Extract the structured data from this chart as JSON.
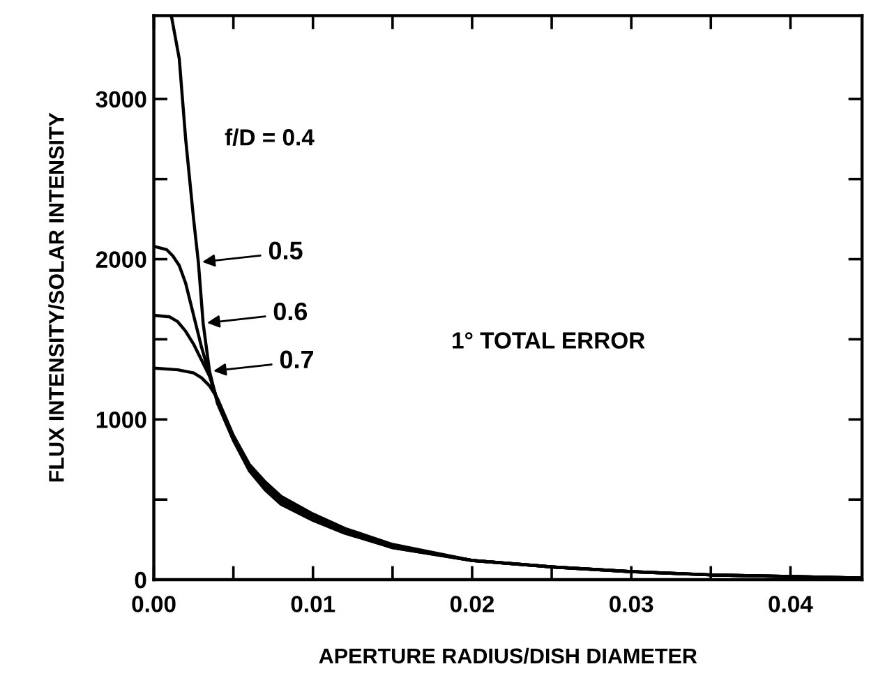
{
  "chart_data": {
    "type": "line",
    "xlabel": "APERTURE RADIUS/DISH DIAMETER",
    "ylabel": "FLUX INTENSITY/SOLAR INTENSITY",
    "xlim": [
      0,
      0.0445
    ],
    "ylim": [
      0,
      3520
    ],
    "xticks": [
      {
        "value": 0,
        "label": "0.00"
      },
      {
        "value": 0.005,
        "label": null
      },
      {
        "value": 0.01,
        "label": "0.01"
      },
      {
        "value": 0.015,
        "label": null
      },
      {
        "value": 0.02,
        "label": "0.02"
      },
      {
        "value": 0.025,
        "label": null
      },
      {
        "value": 0.03,
        "label": "0.03"
      },
      {
        "value": 0.035,
        "label": null
      },
      {
        "value": 0.04,
        "label": "0.04"
      }
    ],
    "yticks": [
      0,
      {
        "value": 500,
        "label": null
      },
      1000,
      {
        "value": 1500,
        "label": null
      },
      2000,
      {
        "value": 2500,
        "label": null
      },
      3000
    ],
    "grid": false,
    "legend": false,
    "marker": "none",
    "line_style": "solid",
    "series": [
      {
        "color": "#000000",
        "x": [
          0.0011,
          0.0016,
          0.002,
          0.0025,
          0.0028,
          0.0031,
          0.0035,
          0.004,
          0.005,
          0.006,
          0.007,
          0.008,
          0.01,
          0.012,
          0.015,
          0.02,
          0.025,
          0.03,
          0.035,
          0.04,
          0.0445
        ],
        "values": [
          3520,
          3250,
          2750,
          2250,
          1980,
          1600,
          1300,
          1100,
          870,
          680,
          560,
          470,
          370,
          290,
          200,
          120,
          80,
          50,
          30,
          20,
          10
        ]
      },
      {
        "color": "#000000",
        "x": [
          0,
          0.0008,
          0.0012,
          0.0016,
          0.002,
          0.0025,
          0.003,
          0.0035,
          0.004,
          0.005,
          0.006,
          0.007,
          0.008,
          0.01,
          0.012,
          0.015,
          0.02,
          0.025,
          0.03,
          0.035,
          0.04,
          0.0445
        ],
        "values": [
          2080,
          2060,
          2020,
          1960,
          1850,
          1650,
          1450,
          1280,
          1110,
          880,
          700,
          580,
          490,
          390,
          300,
          200,
          120,
          80,
          50,
          30,
          20,
          10
        ]
      },
      {
        "color": "#000000",
        "x": [
          0,
          0.001,
          0.0015,
          0.002,
          0.0025,
          0.003,
          0.0035,
          0.004,
          0.005,
          0.006,
          0.007,
          0.008,
          0.01,
          0.012,
          0.015,
          0.02,
          0.025,
          0.03,
          0.035,
          0.04,
          0.0445
        ],
        "values": [
          1650,
          1640,
          1610,
          1550,
          1470,
          1370,
          1270,
          1120,
          890,
          710,
          600,
          500,
          400,
          310,
          210,
          120,
          80,
          50,
          30,
          20,
          10
        ]
      },
      {
        "color": "#000000",
        "x": [
          0,
          0.0015,
          0.002,
          0.0025,
          0.003,
          0.0035,
          0.004,
          0.005,
          0.006,
          0.007,
          0.008,
          0.01,
          0.012,
          0.015,
          0.02,
          0.025,
          0.03,
          0.035,
          0.04,
          0.0445
        ],
        "values": [
          1320,
          1310,
          1300,
          1290,
          1260,
          1210,
          1130,
          900,
          720,
          610,
          520,
          410,
          320,
          220,
          120,
          80,
          50,
          30,
          20,
          10
        ]
      }
    ],
    "annotations": [
      "f/D = 0.4",
      {
        "text": "0.5",
        "x": 0.0028,
        "y": 1980
      },
      {
        "text": "0.6",
        "x": 0.0031,
        "y": 1600
      },
      {
        "text": "0.7",
        "x": 0.0035,
        "y": 1300
      },
      "1° TOTAL ERROR"
    ]
  }
}
